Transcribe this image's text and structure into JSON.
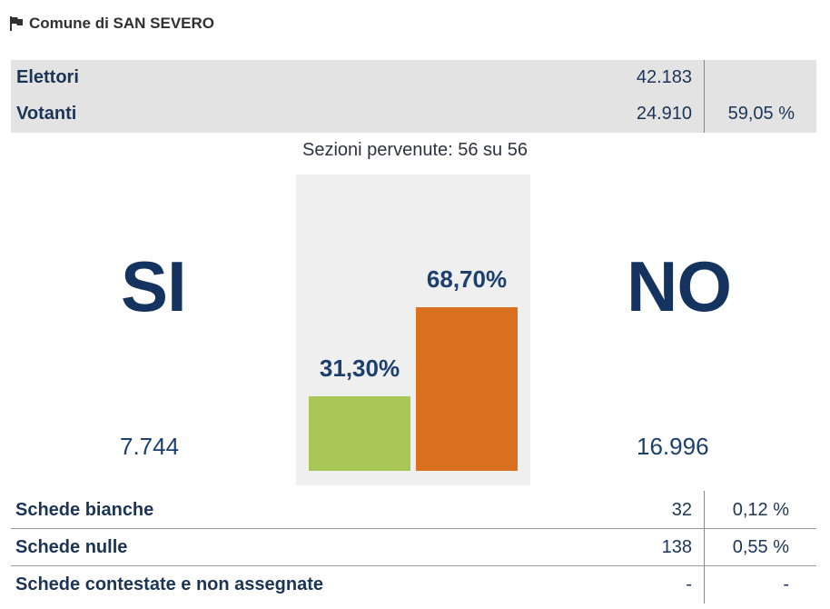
{
  "header": {
    "title": "Comune di SAN SEVERO",
    "icon": "flag-icon"
  },
  "summary": {
    "elettori_label": "Elettori",
    "elettori_value": "42.183",
    "votanti_label": "Votanti",
    "votanti_value": "24.910",
    "votanti_pct": "59,05 %"
  },
  "sections_text": "Sezioni pervenute: 56 su 56",
  "result": {
    "yes_label": "SI",
    "no_label": "NO",
    "yes_votes": "7.744",
    "no_votes": "16.996",
    "yes_pct_label": "31,30%",
    "no_pct_label": "68,70%"
  },
  "chart_data": {
    "type": "bar",
    "categories": [
      "SI",
      "NO"
    ],
    "values": [
      31.3,
      68.7
    ],
    "colors": [
      "#a9c756",
      "#d9701f"
    ],
    "ylim": [
      0,
      100
    ]
  },
  "ballots": [
    {
      "label": "Schede bianche",
      "value": "32",
      "pct": "0,12 %"
    },
    {
      "label": "Schede nulle",
      "value": "138",
      "pct": "0,55 %"
    },
    {
      "label": "Schede contestate e non assegnate",
      "value": "-",
      "pct": "-"
    }
  ]
}
